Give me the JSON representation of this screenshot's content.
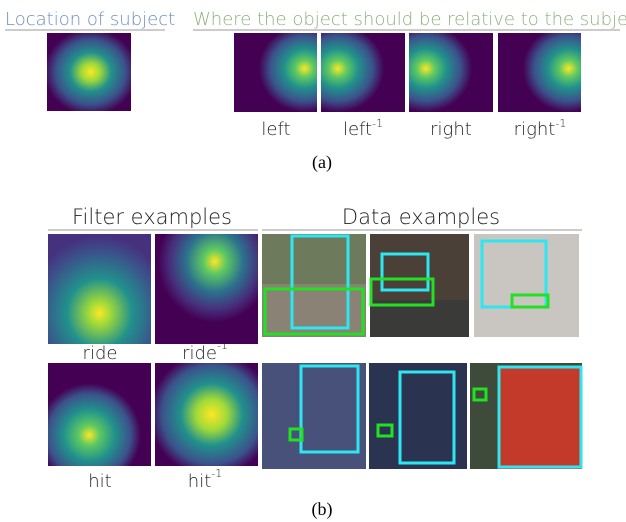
{
  "part_a": {
    "subject_title": "Location of subject",
    "object_title": "Where the object should be relative to the subject",
    "labels": [
      {
        "base": "left"
      },
      {
        "base": "left",
        "sup": "-1"
      },
      {
        "base": "right"
      },
      {
        "base": "right",
        "sup": "-1"
      }
    ],
    "caption": "(a)"
  },
  "part_b": {
    "filter_title": "Filter examples",
    "data_title": "Data examples",
    "labels": [
      {
        "base": "ride"
      },
      {
        "base": "ride",
        "sup": "-1"
      },
      {
        "base": "hit"
      },
      {
        "base": "hit",
        "sup": "-1"
      }
    ],
    "caption": "(b)"
  }
}
